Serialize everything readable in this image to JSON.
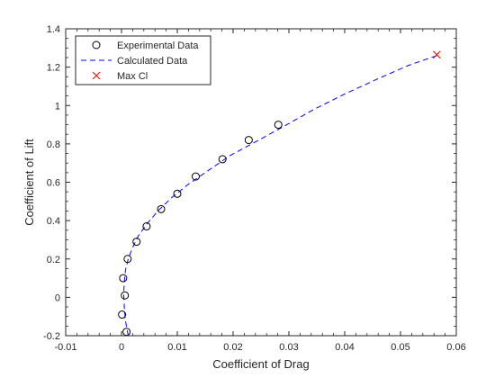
{
  "chart_data": {
    "type": "scatter",
    "title": "",
    "xlabel": "Coefficient of Drag",
    "ylabel": "Coefficient of Lift",
    "xlim": [
      -0.01,
      0.06
    ],
    "ylim": [
      -0.2,
      1.4
    ],
    "x_ticks": [
      -0.01,
      0,
      0.01,
      0.02,
      0.03,
      0.04,
      0.05,
      0.06
    ],
    "y_ticks": [
      -0.2,
      0,
      0.2,
      0.4,
      0.6,
      0.8,
      1,
      1.2,
      1.4
    ],
    "x_tick_labels": [
      "-0.01",
      "0",
      "0.01",
      "0.02",
      "0.03",
      "0.04",
      "0.05",
      "0.06"
    ],
    "y_tick_labels": [
      "-0.2",
      "0",
      "0.2",
      "0.4",
      "0.6",
      "0.8",
      "1",
      "1.2",
      "1.4"
    ],
    "grid": false,
    "minor_ticks": true,
    "box": true,
    "legend_position": "top-left",
    "series": [
      {
        "name": "Experimental Data",
        "style": "marker",
        "marker": "circle",
        "color": "#000000",
        "x": [
          0.0009,
          0.0001,
          0.0006,
          0.0003,
          0.0011,
          0.0027,
          0.0045,
          0.0071,
          0.01,
          0.0133,
          0.0181,
          0.0228,
          0.0281
        ],
        "y": [
          -0.18,
          -0.09,
          0.01,
          0.1,
          0.2,
          0.29,
          0.37,
          0.46,
          0.54,
          0.63,
          0.72,
          0.82,
          0.9
        ]
      },
      {
        "name": "Calculated Data",
        "style": "dashed-line",
        "color": "#0000ff",
        "x": [
          0.0012,
          0.0007,
          0.0005,
          0.0004,
          0.0005,
          0.0007,
          0.0012,
          0.002,
          0.003,
          0.0045,
          0.0065,
          0.009,
          0.012,
          0.0155,
          0.0195,
          0.024,
          0.029,
          0.0345,
          0.04,
          0.046,
          0.0515,
          0.0565
        ],
        "y": [
          -0.2,
          -0.12,
          -0.05,
          0.02,
          0.08,
          0.14,
          0.2,
          0.26,
          0.32,
          0.38,
          0.45,
          0.52,
          0.59,
          0.66,
          0.74,
          0.81,
          0.89,
          0.98,
          1.06,
          1.14,
          1.21,
          1.26
        ]
      },
      {
        "name": "Max Cl",
        "style": "marker",
        "marker": "x",
        "color": "#ff0000",
        "x": [
          0.0565
        ],
        "y": [
          1.265
        ]
      }
    ]
  }
}
